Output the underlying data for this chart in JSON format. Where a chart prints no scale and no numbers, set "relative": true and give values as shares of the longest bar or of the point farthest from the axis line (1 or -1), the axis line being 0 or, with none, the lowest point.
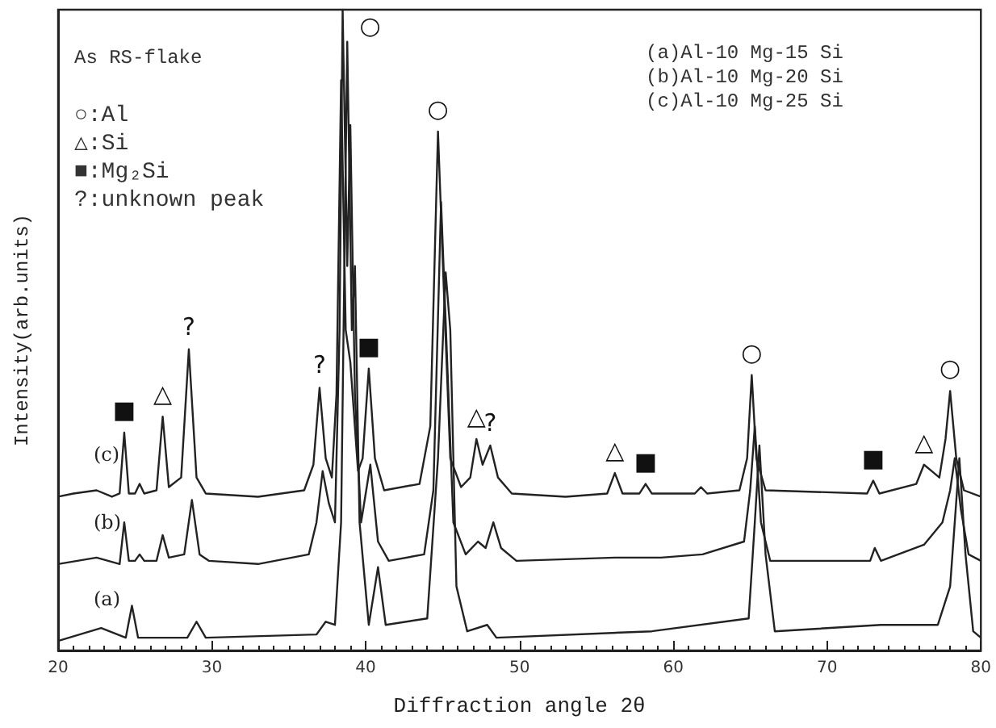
{
  "chart_data": {
    "type": "line",
    "relative": true,
    "xlabel": "Diffraction angle 2θ",
    "ylabel": "Intensity(arb.units)",
    "xlim": [
      20,
      80
    ],
    "xticks": [
      20,
      30,
      40,
      50,
      60,
      70,
      80
    ],
    "grid": false,
    "marker": "none",
    "line_style": "solid",
    "series": [
      {
        "name": "(a)",
        "color": "#222222",
        "x": [
          20,
          22.8,
          24.4,
          24.8,
          25.2,
          28.4,
          29.0,
          29.6,
          36.8,
          37.4,
          38.0,
          38.4,
          38.8,
          39.1,
          39.3,
          39.6,
          40.2,
          40.8,
          41.3,
          44.0,
          44.7,
          45.2,
          45.5,
          45.9,
          46.6,
          47.9,
          48.5,
          58.6,
          64.9,
          65.3,
          65.6,
          66.0,
          66.6,
          73.5,
          77.2,
          78.0,
          78.6,
          79.0,
          79.5,
          80
        ],
        "values": [
          0.015,
          0.035,
          0.02,
          0.07,
          0.02,
          0.02,
          0.045,
          0.02,
          0.025,
          0.045,
          0.04,
          0.2,
          0.95,
          0.5,
          0.6,
          0.2,
          0.04,
          0.13,
          0.04,
          0.05,
          0.3,
          0.59,
          0.5,
          0.1,
          0.03,
          0.04,
          0.02,
          0.03,
          0.05,
          0.2,
          0.32,
          0.15,
          0.03,
          0.04,
          0.04,
          0.1,
          0.3,
          0.15,
          0.03,
          0.02
        ]
      },
      {
        "name": "(b)",
        "color": "#222222",
        "x": [
          20,
          22.5,
          24.0,
          24.3,
          24.6,
          25.0,
          25.3,
          25.6,
          26.4,
          26.8,
          27.2,
          28.2,
          28.7,
          29.2,
          29.8,
          33,
          36.3,
          36.8,
          37.2,
          37.6,
          38.0,
          38.3,
          38.5,
          38.8,
          39.0,
          39.3,
          39.7,
          40.3,
          40.8,
          41.5,
          43.8,
          44.4,
          44.9,
          45.3,
          45.7,
          46.5,
          47.3,
          47.8,
          48.3,
          48.8,
          49.8,
          56.2,
          58.2,
          59.2,
          61.9,
          64.6,
          65.0,
          65.3,
          65.7,
          66.3,
          72.8,
          73.1,
          73.5,
          76.3,
          77.5,
          78.0,
          78.3,
          78.7,
          79.2,
          80
        ],
        "values": [
          0.135,
          0.145,
          0.135,
          0.2,
          0.14,
          0.14,
          0.15,
          0.14,
          0.14,
          0.18,
          0.145,
          0.15,
          0.235,
          0.15,
          0.14,
          0.135,
          0.15,
          0.2,
          0.28,
          0.23,
          0.2,
          0.5,
          1.0,
          0.6,
          0.82,
          0.4,
          0.2,
          0.29,
          0.17,
          0.14,
          0.15,
          0.25,
          0.7,
          0.45,
          0.2,
          0.15,
          0.17,
          0.16,
          0.2,
          0.16,
          0.14,
          0.145,
          0.145,
          0.145,
          0.15,
          0.17,
          0.25,
          0.35,
          0.2,
          0.14,
          0.14,
          0.16,
          0.14,
          0.165,
          0.2,
          0.25,
          0.3,
          0.22,
          0.15,
          0.14
        ]
      },
      {
        "name": "(c)",
        "color": "#222222",
        "x": [
          20,
          21,
          22.5,
          23.5,
          24.0,
          24.3,
          24.6,
          25.0,
          25.3,
          25.6,
          26.4,
          26.8,
          27.2,
          28.0,
          28.5,
          29.0,
          29.6,
          33,
          36.0,
          36.6,
          37.0,
          37.4,
          37.8,
          38.1,
          38.4,
          38.7,
          39.0,
          39.5,
          39.8,
          40.2,
          40.6,
          41.2,
          43.5,
          44.2,
          44.7,
          45.1,
          45.5,
          46.2,
          46.8,
          47.2,
          47.6,
          48.1,
          48.6,
          49.5,
          53,
          55.7,
          56.2,
          56.7,
          57.8,
          58.2,
          58.6,
          61.4,
          61.8,
          62.2,
          64.3,
          64.8,
          65.1,
          65.4,
          66.0,
          72.6,
          73.0,
          73.4,
          75.8,
          76.3,
          76.8,
          77.3,
          77.7,
          78.0,
          78.4,
          78.9,
          80
        ],
        "values": [
          0.24,
          0.245,
          0.25,
          0.24,
          0.245,
          0.34,
          0.245,
          0.245,
          0.26,
          0.245,
          0.25,
          0.365,
          0.255,
          0.27,
          0.47,
          0.27,
          0.245,
          0.24,
          0.25,
          0.29,
          0.41,
          0.3,
          0.27,
          0.4,
          0.89,
          0.5,
          0.45,
          0.28,
          0.3,
          0.44,
          0.3,
          0.25,
          0.26,
          0.35,
          0.81,
          0.55,
          0.3,
          0.255,
          0.27,
          0.33,
          0.29,
          0.32,
          0.27,
          0.245,
          0.24,
          0.245,
          0.277,
          0.245,
          0.245,
          0.26,
          0.245,
          0.245,
          0.255,
          0.245,
          0.25,
          0.3,
          0.43,
          0.3,
          0.25,
          0.245,
          0.265,
          0.245,
          0.26,
          0.29,
          0.28,
          0.27,
          0.33,
          0.405,
          0.3,
          0.25,
          0.24
        ]
      }
    ],
    "annotations": [
      "As RS-flake",
      "○:Al",
      "△:Si",
      "■:Mg₂Si",
      "?:unknown peak",
      "(a)Al-10 Mg-15 Si",
      "(b)Al-10 Mg-20 Si",
      "(c)Al-10 Mg-25 Si",
      {
        "text": "■",
        "x": 24.3,
        "y": 0.34
      },
      {
        "text": "△",
        "x": 26.8,
        "y": 0.365
      },
      {
        "text": "?",
        "x": 28.5,
        "y": 0.47
      },
      {
        "text": "?",
        "x": 37.0,
        "y": 0.41
      },
      {
        "text": "○",
        "x": 38.5,
        "y": 1.0
      },
      {
        "text": "■",
        "x": 40.2,
        "y": 0.44
      },
      {
        "text": "○",
        "x": 44.7,
        "y": 0.81
      },
      {
        "text": "△",
        "x": 47.2,
        "y": 0.33
      },
      {
        "text": "?",
        "x": 48.1,
        "y": 0.32
      },
      {
        "text": "△",
        "x": 56.2,
        "y": 0.277
      },
      {
        "text": "■",
        "x": 58.2,
        "y": 0.26
      },
      {
        "text": "○",
        "x": 65.1,
        "y": 0.43
      },
      {
        "text": "■",
        "x": 73.0,
        "y": 0.265
      },
      {
        "text": "△",
        "x": 76.3,
        "y": 0.29
      },
      {
        "text": "○",
        "x": 78.0,
        "y": 0.405
      }
    ]
  }
}
